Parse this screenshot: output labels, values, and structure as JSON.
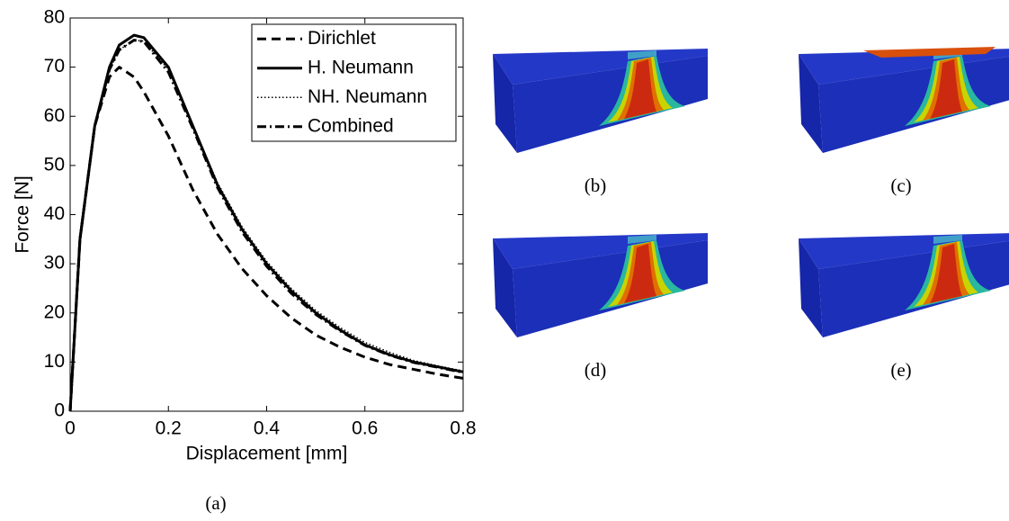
{
  "chart_data": {
    "type": "line",
    "xlabel": "Displacement [mm]",
    "ylabel": "Force [N]",
    "caption": "(a)",
    "xlim": [
      0,
      0.8
    ],
    "ylim": [
      0,
      80
    ],
    "xticks": [
      0,
      0.2,
      0.4,
      0.6,
      0.8
    ],
    "yticks": [
      0,
      10,
      20,
      30,
      40,
      50,
      60,
      70,
      80
    ],
    "grid": false,
    "legend": "top-right",
    "x": [
      0,
      0.02,
      0.05,
      0.08,
      0.1,
      0.13,
      0.15,
      0.2,
      0.25,
      0.3,
      0.35,
      0.4,
      0.45,
      0.5,
      0.55,
      0.6,
      0.65,
      0.7,
      0.75,
      0.8
    ],
    "series": [
      {
        "name": "Dirichlet",
        "color": "#000000",
        "style": "dashed",
        "values": [
          0,
          35,
          58,
          68,
          70,
          68,
          65,
          56,
          45,
          36,
          29,
          23.5,
          19,
          15.5,
          13,
          11,
          9.5,
          8.5,
          7.5,
          6.7
        ]
      },
      {
        "name": "H. Neumann",
        "color": "#000000",
        "style": "solid",
        "values": [
          0,
          35,
          58,
          70,
          74.5,
          76.5,
          76,
          70,
          58,
          46,
          37,
          30,
          24.5,
          20,
          16.5,
          13.5,
          11.5,
          10,
          9,
          8
        ]
      },
      {
        "name": "NH. Neumann",
        "color": "#000000",
        "style": "dotted",
        "values": [
          0,
          35,
          58,
          69.5,
          73.5,
          75.5,
          75.3,
          69.5,
          58,
          46.5,
          37.5,
          30.5,
          25,
          20.5,
          17,
          14,
          12,
          10.3,
          9.2,
          8.2
        ]
      },
      {
        "name": "Combined",
        "color": "#000000",
        "style": "dashdot",
        "values": [
          0,
          35,
          58,
          69.5,
          73.5,
          75.5,
          75.2,
          69,
          57.5,
          45.5,
          36.5,
          29.5,
          24,
          19.7,
          16.3,
          13.4,
          11.4,
          9.9,
          8.9,
          7.9
        ]
      }
    ]
  },
  "panels": [
    {
      "label": "(b)"
    },
    {
      "label": "(c)"
    },
    {
      "label": "(d)"
    },
    {
      "label": "(e)"
    }
  ]
}
